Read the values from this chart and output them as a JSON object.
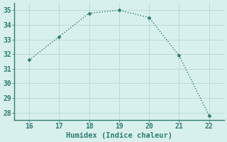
{
  "x": [
    16,
    17,
    18,
    19,
    20,
    21,
    22
  ],
  "y": [
    31.6,
    33.2,
    34.8,
    35.0,
    34.5,
    31.9,
    27.8
  ],
  "line_color": "#2d7d72",
  "marker": "D",
  "marker_size": 2.5,
  "xlabel": "Humidex (Indice chaleur)",
  "xlim": [
    15.5,
    22.5
  ],
  "ylim": [
    27.5,
    35.5
  ],
  "xticks": [
    16,
    17,
    18,
    19,
    20,
    21,
    22
  ],
  "yticks": [
    28,
    29,
    30,
    31,
    32,
    33,
    34,
    35
  ],
  "bg_color": "#ceeae4",
  "plot_bg_color": "#d8f0ec",
  "grid_color": "#b8d8d0",
  "tick_color": "#2d7d72",
  "xlabel_fontsize": 7.5,
  "tick_fontsize": 7,
  "line_width": 1.0,
  "line_style": ":"
}
